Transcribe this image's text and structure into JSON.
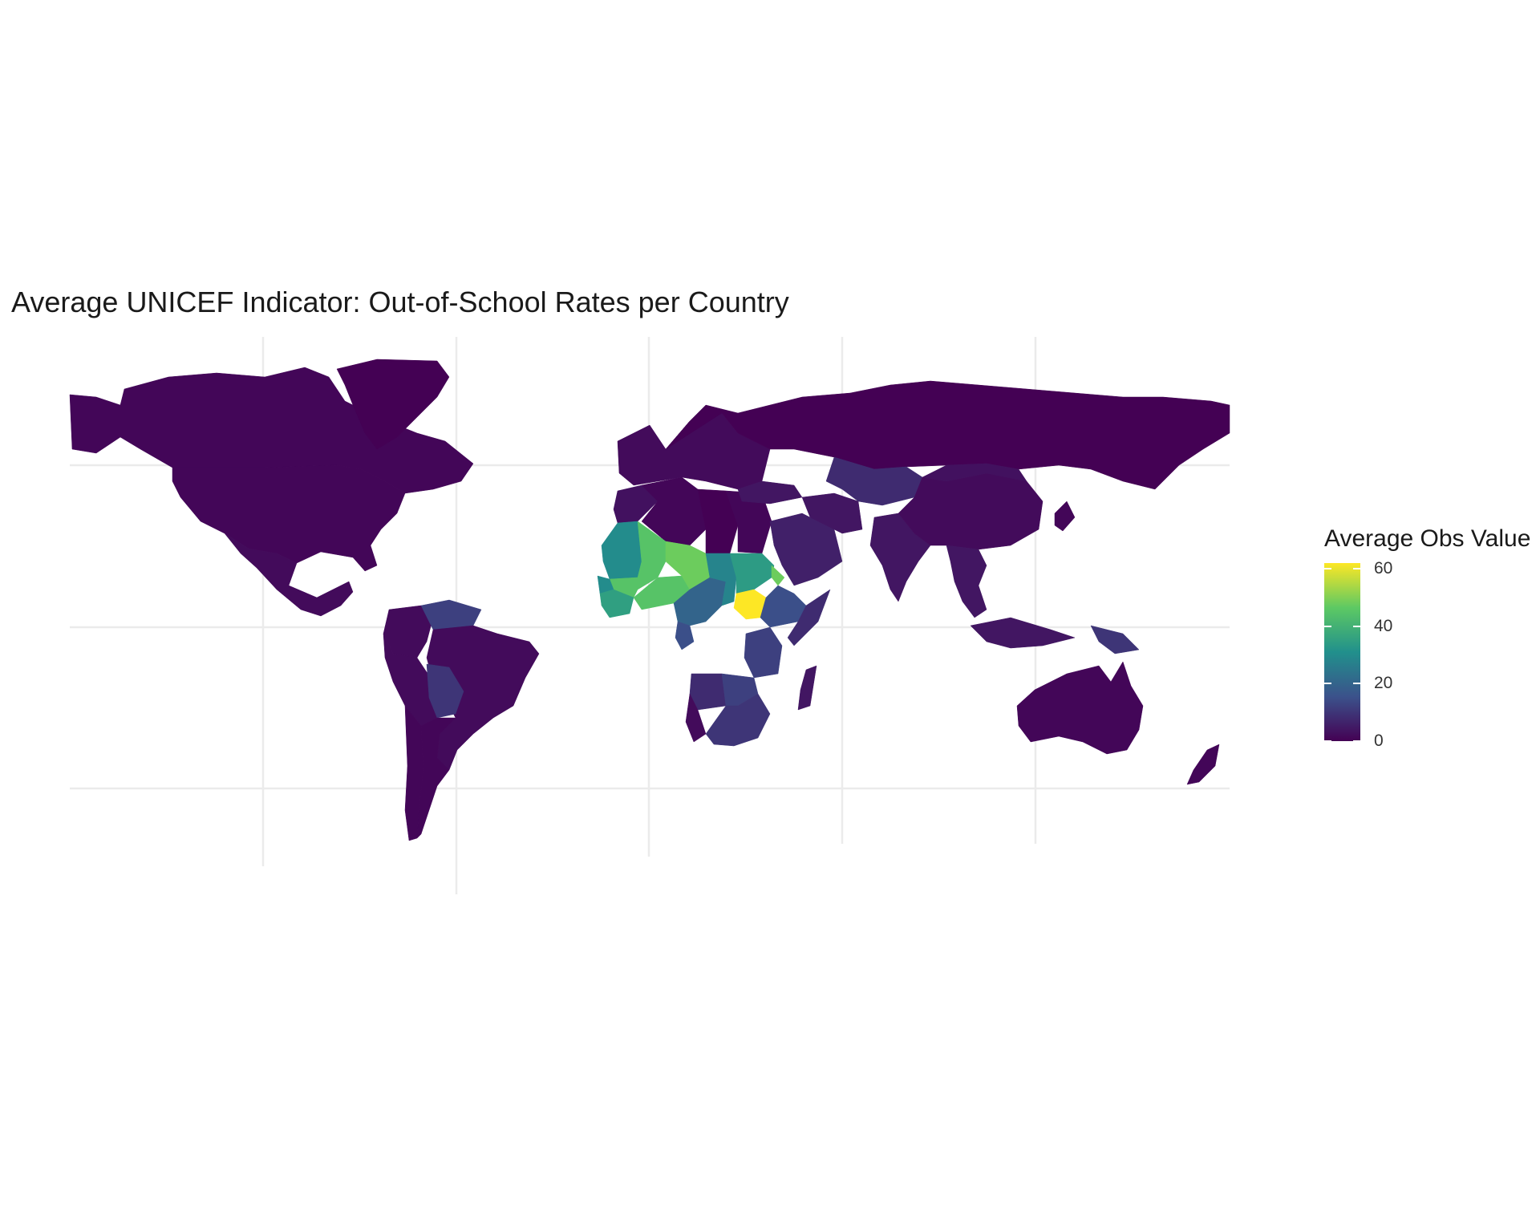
{
  "chart_data": {
    "type": "choropleth-map",
    "title": "Average UNICEF Indicator: Out-of-School Rates per Country",
    "legend": {
      "title": "Average Obs Value",
      "ticks": [
        0,
        20,
        40,
        60
      ],
      "range": [
        0,
        62
      ],
      "palette": [
        "#440154",
        "#3b528b",
        "#21908c",
        "#5dc963",
        "#fde725"
      ],
      "placement": "right"
    },
    "grid": true,
    "regions": [
      {
        "name": "Canada",
        "value": 1
      },
      {
        "name": "United States",
        "value": 1
      },
      {
        "name": "Mexico",
        "value": 2
      },
      {
        "name": "Greenland",
        "value": 0
      },
      {
        "name": "Colombia",
        "value": 2
      },
      {
        "name": "Venezuela",
        "value": 12
      },
      {
        "name": "Brazil",
        "value": 2
      },
      {
        "name": "Peru",
        "value": 2
      },
      {
        "name": "Bolivia",
        "value": 10
      },
      {
        "name": "Argentina",
        "value": 1
      },
      {
        "name": "Chile",
        "value": 1
      },
      {
        "name": "Morocco",
        "value": 3
      },
      {
        "name": "Algeria",
        "value": 1
      },
      {
        "name": "Libya",
        "value": 0
      },
      {
        "name": "Egypt",
        "value": 1
      },
      {
        "name": "Mauritania",
        "value": 30
      },
      {
        "name": "Mali",
        "value": 45
      },
      {
        "name": "Senegal",
        "value": 30
      },
      {
        "name": "Guinea",
        "value": 35
      },
      {
        "name": "Burkina Faso",
        "value": 45
      },
      {
        "name": "Niger",
        "value": 48
      },
      {
        "name": "Nigeria",
        "value": 20
      },
      {
        "name": "Chad",
        "value": 28
      },
      {
        "name": "Sudan",
        "value": 34
      },
      {
        "name": "South Sudan",
        "value": 62
      },
      {
        "name": "Eritrea",
        "value": 48
      },
      {
        "name": "Ethiopia",
        "value": 15
      },
      {
        "name": "Somalia",
        "value": 8
      },
      {
        "name": "Gabon",
        "value": 15
      },
      {
        "name": "Tanzania",
        "value": 12
      },
      {
        "name": "Angola",
        "value": 8
      },
      {
        "name": "Namibia",
        "value": 2
      },
      {
        "name": "Zambia",
        "value": 12
      },
      {
        "name": "South Africa",
        "value": 10
      },
      {
        "name": "Madagascar",
        "value": 4
      },
      {
        "name": "Europe",
        "value": 2
      },
      {
        "name": "Russia",
        "value": 0
      },
      {
        "name": "Kazakhstan",
        "value": 8
      },
      {
        "name": "Turkey",
        "value": 4
      },
      {
        "name": "Saudi Arabia",
        "value": 6
      },
      {
        "name": "Iran",
        "value": 4
      },
      {
        "name": "India",
        "value": 4
      },
      {
        "name": "China",
        "value": 2
      },
      {
        "name": "Mongolia",
        "value": 3
      },
      {
        "name": "Southeast Asia",
        "value": 4
      },
      {
        "name": "Indonesia",
        "value": 4
      },
      {
        "name": "Papua New Guinea",
        "value": 10
      },
      {
        "name": "Australia",
        "value": 1
      },
      {
        "name": "New Zealand",
        "value": 1
      },
      {
        "name": "Japan",
        "value": 1
      }
    ]
  }
}
